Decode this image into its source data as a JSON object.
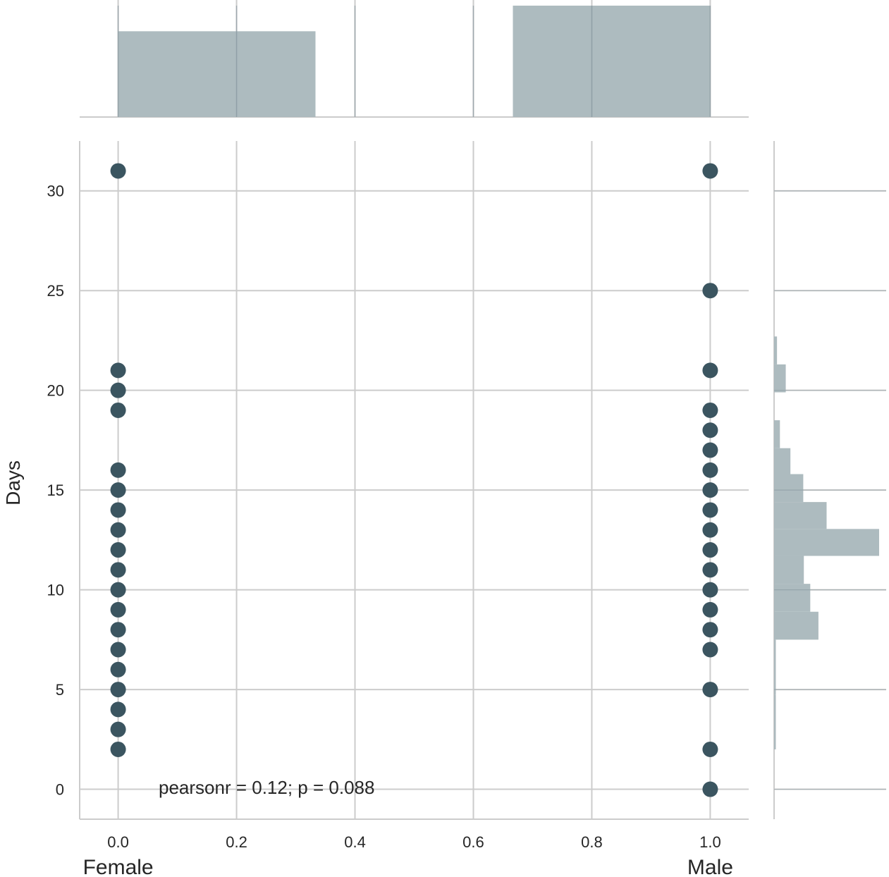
{
  "chart_data": {
    "type": "scatter",
    "title": "",
    "xlabel": "",
    "ylabel": "Days",
    "xlim": [
      -0.065,
      1.065
    ],
    "ylim": [
      -1.5,
      32.5
    ],
    "xticks": [
      "0.0",
      "0.2",
      "0.4",
      "0.6",
      "0.8",
      "1.0"
    ],
    "xtick_values": [
      0.0,
      0.2,
      0.4,
      0.6,
      0.8,
      1.0
    ],
    "yticks": [
      "0",
      "5",
      "10",
      "15",
      "20",
      "25",
      "30"
    ],
    "ytick_values": [
      0,
      5,
      10,
      15,
      20,
      25,
      30
    ],
    "x_category_labels": [
      {
        "x": 0.0,
        "label": "Female"
      },
      {
        "x": 1.0,
        "label": "Male"
      }
    ],
    "annotation": "pearsonr = 0.12; p = 0.088",
    "grid": true,
    "point_color": "#3b5560",
    "hist_color": "#a9b7bc",
    "series": [
      {
        "name": "Female",
        "x": 0.0,
        "y": [
          2,
          3,
          4,
          5,
          6,
          7,
          8,
          9,
          10,
          11,
          12,
          13,
          14,
          15,
          16,
          19,
          20,
          21,
          31
        ]
      },
      {
        "name": "Male",
        "x": 1.0,
        "y": [
          0,
          2,
          5,
          7,
          8,
          9,
          10,
          11,
          12,
          13,
          14,
          15,
          16,
          17,
          18,
          19,
          21,
          25,
          31
        ]
      }
    ],
    "top_histogram": {
      "bins": [
        {
          "x0": 0.0,
          "x1": 0.3333,
          "height": 0.77
        },
        {
          "x0": 0.6667,
          "x1": 1.0,
          "height": 1.0
        }
      ]
    },
    "right_histogram": {
      "bins": [
        {
          "y0": 2,
          "y1": 4.75,
          "count": 0.3
        },
        {
          "y0": 4.75,
          "y1": 7.5,
          "count": 0.3
        },
        {
          "y0": 7.5,
          "y1": 8.9,
          "count": 7.6
        },
        {
          "y0": 8.9,
          "y1": 10.3,
          "count": 6.2
        },
        {
          "y0": 10.3,
          "y1": 11.7,
          "count": 5.1
        },
        {
          "y0": 11.7,
          "y1": 13.05,
          "count": 18.0
        },
        {
          "y0": 13.05,
          "y1": 14.4,
          "count": 9.0
        },
        {
          "y0": 14.4,
          "y1": 15.8,
          "count": 5.0
        },
        {
          "y0": 15.8,
          "y1": 17.1,
          "count": 2.8
        },
        {
          "y0": 17.1,
          "y1": 18.5,
          "count": 1.0
        },
        {
          "y0": 18.5,
          "y1": 19.9,
          "count": 0.0
        },
        {
          "y0": 19.9,
          "y1": 21.3,
          "count": 2.0
        },
        {
          "y0": 21.3,
          "y1": 22.7,
          "count": 0.5
        }
      ],
      "max_count": 18.0
    }
  }
}
